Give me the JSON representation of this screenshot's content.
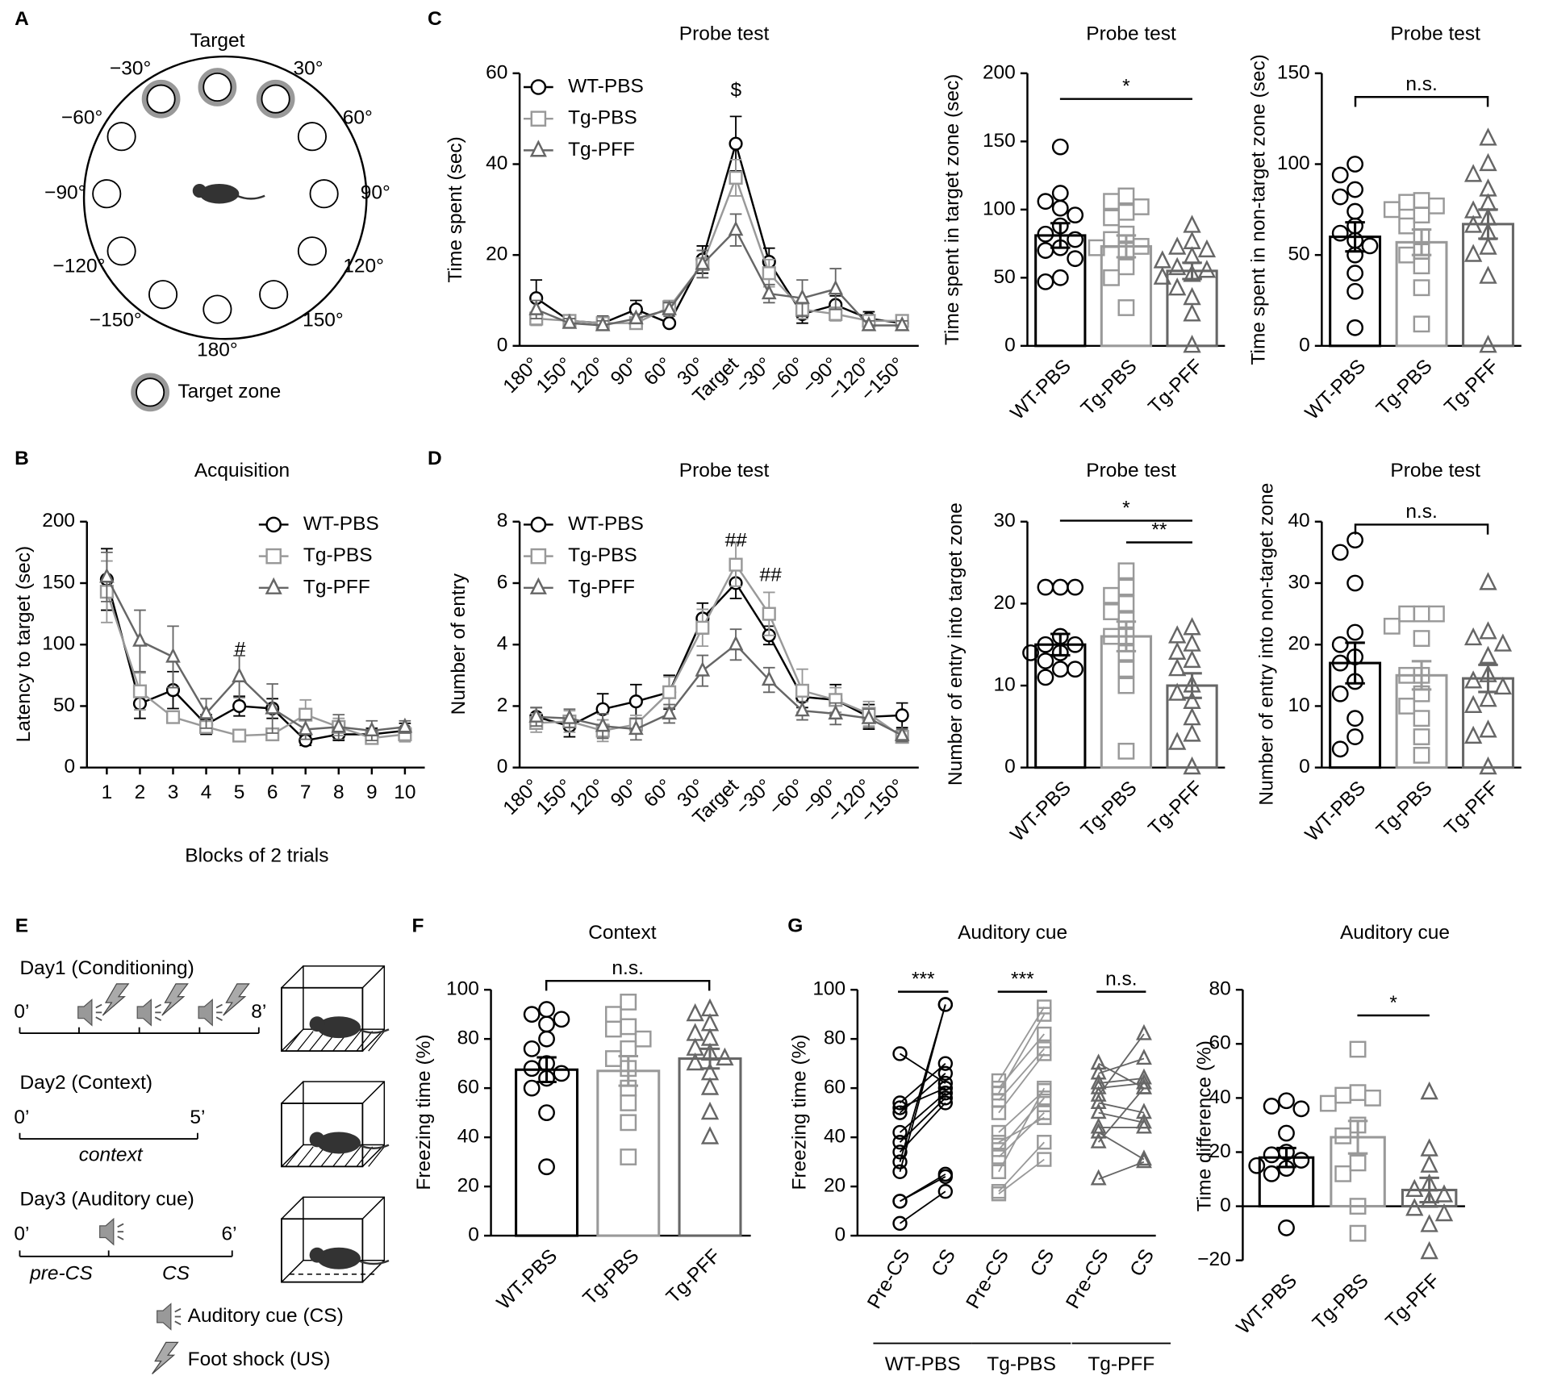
{
  "panel_labels": [
    "A",
    "B",
    "C",
    "D",
    "E",
    "F",
    "G"
  ],
  "maze": {
    "target": "Target",
    "angles": [
      "−30°",
      "30°",
      "−60°",
      "60°",
      "−90°",
      "90°",
      "−120°",
      "120°",
      "−150°",
      "150°",
      "180°"
    ],
    "legend": "Target zone"
  },
  "fear_protocol": {
    "day1": {
      "label": "Day1 (Conditioning)",
      "start": "0’",
      "end": "8’"
    },
    "day2": {
      "label": "Day2 (Context)",
      "start": "0’",
      "end": "5’",
      "phase": "context"
    },
    "day3": {
      "label": "Day3 (Auditory cue)",
      "start": "0’",
      "end": "6’",
      "phases": [
        "pre-CS",
        "CS"
      ]
    },
    "legend": [
      "Auditory cue (CS)",
      "Foot shock (US)"
    ]
  },
  "chart_data": [
    {
      "type": "line",
      "title": "Probe test",
      "ylabel": "Time spent (sec)",
      "categories": [
        "180°",
        "150°",
        "120°",
        "90°",
        "60°",
        "30°",
        "Target",
        "−30°",
        "−60°",
        "−90°",
        "−120°",
        "−150°"
      ],
      "series": [
        {
          "name": "WT-PBS",
          "color": "#000000",
          "marker": "circle",
          "values": [
            10.5,
            5.5,
            5,
            8,
            5,
            19,
            44.5,
            18.5,
            7,
            9,
            6,
            5
          ],
          "errors": [
            4,
            1,
            1.5,
            2,
            0.5,
            3,
            6,
            3,
            2,
            2,
            1.5,
            1
          ]
        },
        {
          "name": "Tg-PBS",
          "color": "#999999",
          "marker": "square",
          "values": [
            6,
            5.5,
            5,
            5,
            8.5,
            18,
            37,
            16,
            8,
            7,
            5.5,
            5.5
          ],
          "errors": [
            1.5,
            1,
            1,
            1,
            1.5,
            3,
            4,
            3,
            2,
            1.5,
            1,
            1
          ]
        },
        {
          "name": "Tg-PFF",
          "color": "#666666",
          "marker": "triangle",
          "values": [
            8,
            5,
            4.5,
            6,
            8,
            18,
            25.5,
            11.5,
            10.5,
            12.5,
            4.5,
            4.5
          ],
          "errors": [
            2,
            1,
            1,
            1,
            1.5,
            3,
            3.5,
            2,
            4,
            4.5,
            1,
            1
          ]
        }
      ],
      "ylim": [
        0,
        60
      ],
      "yticks": [
        0,
        20,
        40,
        60
      ],
      "annotations": [
        "$"
      ],
      "legend": "upper left"
    },
    {
      "type": "bar",
      "title": "Probe test",
      "ylabel": "Time spent in target zone (sec)",
      "categories": [
        "WT-PBS",
        "Tg-PBS",
        "Tg-PFF"
      ],
      "colors": [
        "#000000",
        "#999999",
        "#666666"
      ],
      "markers": [
        "circle",
        "square",
        "triangle"
      ],
      "values": [
        81,
        73,
        55
      ],
      "errors": [
        9,
        8,
        6
      ],
      "points": [
        [
          146,
          112,
          106,
          101,
          96,
          88,
          82,
          78,
          72,
          70,
          64,
          50,
          47
        ],
        [
          110,
          106,
          102,
          98,
          94,
          82,
          78,
          73,
          72,
          70,
          58,
          50,
          28
        ],
        [
          88,
          76,
          72,
          70,
          65,
          62,
          57,
          55,
          52,
          50,
          42,
          35,
          23,
          0
        ]
      ],
      "ylim": [
        0,
        200
      ],
      "yticks": [
        0,
        50,
        100,
        150,
        200
      ],
      "annotations": [
        "*"
      ]
    },
    {
      "type": "bar",
      "title": "Probe test",
      "ylabel": "Time spent in non-target zone (sec)",
      "categories": [
        "WT-PBS",
        "Tg-PBS",
        "Tg-PFF"
      ],
      "colors": [
        "#000000",
        "#999999",
        "#666666"
      ],
      "markers": [
        "circle",
        "square",
        "triangle"
      ],
      "values": [
        60,
        57,
        67
      ],
      "errors": [
        8,
        7,
        8
      ],
      "points": [
        [
          100,
          94,
          86,
          82,
          74,
          66,
          62,
          58,
          55,
          50,
          40,
          30,
          10
        ],
        [
          80,
          79,
          77,
          75,
          72,
          66,
          60,
          52,
          50,
          44,
          32,
          12
        ],
        [
          114,
          100,
          94,
          86,
          78,
          74,
          70,
          66,
          62,
          54,
          50,
          38,
          0
        ]
      ],
      "ylim": [
        0,
        150
      ],
      "yticks": [
        0,
        50,
        100,
        150
      ],
      "annotations": [
        "n.s."
      ]
    },
    {
      "type": "line",
      "title": "Acquisition",
      "xlabel": "Blocks of 2 trials",
      "ylabel": "Latency to target (sec)",
      "x": [
        1,
        2,
        3,
        4,
        5,
        6,
        7,
        8,
        9,
        10
      ],
      "xlim": [
        0.4,
        10.6
      ],
      "xticks": [
        1,
        2,
        3,
        4,
        5,
        6,
        7,
        8,
        9,
        10
      ],
      "series": [
        {
          "name": "WT-PBS",
          "color": "#000000",
          "marker": "circle",
          "values": [
            153,
            52,
            63,
            35,
            50,
            48,
            22,
            27,
            27,
            30
          ],
          "errors": [
            25,
            12,
            15,
            8,
            8,
            8,
            4,
            5,
            5,
            6
          ]
        },
        {
          "name": "Tg-PBS",
          "color": "#999999",
          "marker": "square",
          "values": [
            143,
            62,
            41,
            33,
            26,
            27,
            43,
            33,
            24,
            27
          ],
          "errors": [
            25,
            15,
            4,
            4,
            2,
            2,
            12,
            7,
            4,
            6
          ]
        },
        {
          "name": "Tg-PFF",
          "color": "#666666",
          "marker": "triangle",
          "values": [
            155,
            103,
            90,
            44,
            74,
            48,
            31,
            33,
            30,
            33
          ],
          "errors": [
            20,
            25,
            25,
            12,
            17,
            20,
            8,
            10,
            8,
            5
          ]
        }
      ],
      "ylim": [
        0,
        200
      ],
      "yticks": [
        0,
        50,
        100,
        150,
        200
      ],
      "annotations": [
        "#"
      ],
      "legend": "upper right"
    },
    {
      "type": "line",
      "title": "Probe test",
      "ylabel": "Number of entry",
      "categories": [
        "180°",
        "150°",
        "120°",
        "90°",
        "60°",
        "30°",
        "Target",
        "−30°",
        "−60°",
        "−90°",
        "−120°",
        "−150°"
      ],
      "series": [
        {
          "name": "WT-PBS",
          "color": "#000000",
          "marker": "circle",
          "values": [
            1.65,
            1.35,
            1.9,
            2.15,
            2.45,
            4.85,
            6.0,
            4.3,
            2.3,
            2.2,
            1.65,
            1.7
          ],
          "errors": [
            0.3,
            0.35,
            0.5,
            0.55,
            0.55,
            0.5,
            0.5,
            0.3,
            0.35,
            0.5,
            0.4,
            0.4
          ]
        },
        {
          "name": "Tg-PBS",
          "color": "#999999",
          "marker": "square",
          "values": [
            1.45,
            1.5,
            1.2,
            1.4,
            2.45,
            4.55,
            6.6,
            5.0,
            2.5,
            2.2,
            1.75,
            1.0
          ],
          "errors": [
            0.3,
            0.35,
            0.35,
            0.3,
            0.5,
            0.6,
            0.7,
            0.7,
            0.7,
            0.4,
            0.4,
            0.2
          ]
        },
        {
          "name": "Tg-PFF",
          "color": "#666666",
          "marker": "triangle",
          "values": [
            1.65,
            1.6,
            1.35,
            1.25,
            1.75,
            3.15,
            4.0,
            2.85,
            1.85,
            1.75,
            1.6,
            1.05
          ],
          "errors": [
            0.3,
            0.3,
            0.4,
            0.35,
            0.3,
            0.5,
            0.5,
            0.4,
            0.3,
            0.35,
            0.3,
            0.2
          ]
        }
      ],
      "ylim": [
        0,
        8
      ],
      "yticks": [
        0,
        2,
        4,
        6,
        8
      ],
      "annotations": [
        "##",
        "##"
      ],
      "legend": "upper left"
    },
    {
      "type": "bar",
      "title": "Probe test",
      "ylabel": "Number of entry into target zone",
      "categories": [
        "WT-PBS",
        "Tg-PBS",
        "Tg-PFF"
      ],
      "colors": [
        "#000000",
        "#999999",
        "#666666"
      ],
      "markers": [
        "circle",
        "square",
        "triangle"
      ],
      "values": [
        15,
        16,
        10
      ],
      "errors": [
        1.3,
        1.8,
        1.5
      ],
      "points": [
        [
          22,
          22,
          22,
          16,
          15,
          15,
          14,
          14,
          13,
          12,
          12,
          11
        ],
        [
          24,
          22,
          21,
          20,
          19,
          18,
          16,
          16,
          14,
          12,
          10,
          2
        ],
        [
          17,
          16,
          15,
          14,
          13,
          12,
          10,
          9,
          8,
          6,
          4,
          3,
          0
        ]
      ],
      "ylim": [
        0,
        30
      ],
      "yticks": [
        0,
        10,
        20,
        30
      ],
      "annotations": [
        "*",
        "**"
      ]
    },
    {
      "type": "bar",
      "title": "Probe test",
      "ylabel": "Number of entry into non-target zone",
      "categories": [
        "WT-PBS",
        "Tg-PBS",
        "Tg-PFF"
      ],
      "colors": [
        "#000000",
        "#999999",
        "#666666"
      ],
      "markers": [
        "circle",
        "square",
        "triangle"
      ],
      "values": [
        17,
        15,
        14.5
      ],
      "errors": [
        3.3,
        2.3,
        2.2
      ],
      "points": [
        [
          37,
          35,
          30,
          22,
          20,
          18,
          17,
          14,
          12,
          8,
          5,
          3
        ],
        [
          25,
          25,
          25,
          23,
          21,
          15,
          15,
          12,
          10,
          8,
          5,
          2
        ],
        [
          30,
          22,
          21,
          20,
          18,
          15,
          14,
          13,
          11,
          10,
          6,
          5,
          0
        ]
      ],
      "ylim": [
        0,
        40
      ],
      "yticks": [
        0,
        10,
        20,
        30,
        40
      ],
      "annotations": [
        "n.s."
      ]
    },
    {
      "type": "bar",
      "title": "Context",
      "ylabel": "Freezing time (%)",
      "categories": [
        "WT-PBS",
        "Tg-PBS",
        "Tg-PFF"
      ],
      "colors": [
        "#000000",
        "#999999",
        "#666666"
      ],
      "markers": [
        "circle",
        "square",
        "triangle"
      ],
      "values": [
        67.5,
        67,
        72
      ],
      "errors": [
        5,
        6,
        4
      ],
      "points": [
        [
          92,
          90,
          88,
          86,
          80,
          76,
          70,
          68,
          66,
          64,
          60,
          50,
          28
        ],
        [
          95,
          90,
          85,
          84,
          80,
          76,
          72,
          68,
          60,
          54,
          46,
          32
        ],
        [
          92,
          90,
          86,
          82,
          80,
          76,
          74,
          72,
          70,
          66,
          60,
          50,
          40
        ]
      ],
      "ylim": [
        0,
        100
      ],
      "yticks": [
        0,
        20,
        40,
        60,
        80,
        100
      ],
      "annotations": [
        "n.s."
      ]
    },
    {
      "type": "paired",
      "title": "Auditory cue",
      "ylabel": "Freezing time (%)",
      "categories": [
        "Pre-CS",
        "CS",
        "Pre-CS",
        "CS",
        "Pre-CS",
        "CS"
      ],
      "series": [
        {
          "name": "WT-PBS",
          "color": "#000000",
          "marker": "circle",
          "pre": [
            74,
            54,
            52,
            50,
            42,
            38,
            34,
            30,
            26,
            14,
            14,
            5
          ],
          "cs": [
            62,
            70,
            60,
            66,
            58,
            56,
            54,
            94,
            94,
            25,
            24,
            18
          ]
        },
        {
          "name": "Tg-PBS",
          "color": "#999999",
          "marker": "square",
          "pre": [
            63,
            60,
            58,
            55,
            50,
            42,
            38,
            35,
            32,
            26,
            18,
            17
          ],
          "cs": [
            93,
            82,
            90,
            76,
            74,
            59,
            48,
            56,
            50,
            60,
            38,
            31
          ]
        },
        {
          "name": "Tg-PFF",
          "color": "#666666",
          "marker": "triangle",
          "pre": [
            70,
            66,
            62,
            60,
            57,
            54,
            50,
            44,
            42,
            38,
            23
          ],
          "cs": [
            60,
            72,
            64,
            62,
            82,
            50,
            46,
            44,
            31,
            60,
            30
          ]
        }
      ],
      "ylim": [
        0,
        100
      ],
      "yticks": [
        0,
        20,
        40,
        60,
        80,
        100
      ],
      "annotations": [
        "***",
        "***",
        "n.s."
      ]
    },
    {
      "type": "bar",
      "title": "Auditory cue",
      "ylabel": "Time difference (%)",
      "categories": [
        "WT-PBS",
        "Tg-PBS",
        "Tg-PFF"
      ],
      "colors": [
        "#000000",
        "#999999",
        "#666666"
      ],
      "markers": [
        "circle",
        "square",
        "triangle"
      ],
      "values": [
        18,
        25.5,
        6
      ],
      "errors": [
        3.5,
        6,
        4.5
      ],
      "points": [
        [
          39,
          37,
          36,
          27,
          20,
          19,
          17,
          15,
          14,
          12,
          -8
        ],
        [
          58,
          42,
          41,
          40,
          38,
          30,
          26,
          16,
          12,
          0,
          -10
        ],
        [
          42,
          21,
          15,
          8,
          6,
          4,
          2,
          -1,
          -3,
          -7,
          -17
        ]
      ],
      "ylim": [
        -20,
        80
      ],
      "yticks": [
        {
          "value": -20,
          "label": "−20"
        },
        0,
        20,
        40,
        60,
        80
      ],
      "annotations": [
        "*"
      ]
    }
  ]
}
